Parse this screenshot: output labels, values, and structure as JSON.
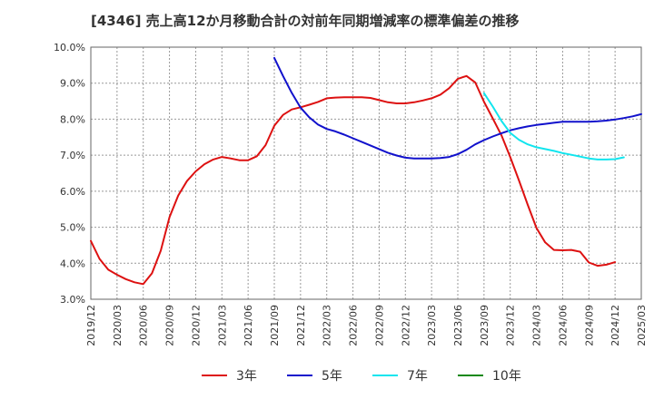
{
  "chart_data": {
    "type": "line",
    "title": "[4346]  売上高12か月移動合計の対前年同期増減率の標準偏差の推移",
    "xlabel": "",
    "ylabel": "",
    "ylim": [
      3.0,
      10.0
    ],
    "y_ticks": [
      "3.0%",
      "4.0%",
      "5.0%",
      "6.0%",
      "7.0%",
      "8.0%",
      "9.0%",
      "10.0%"
    ],
    "x_ticks": [
      "2019/12",
      "2020/03",
      "2020/06",
      "2020/09",
      "2020/12",
      "2021/03",
      "2021/06",
      "2021/09",
      "2021/12",
      "2022/03",
      "2022/06",
      "2022/09",
      "2022/12",
      "2023/03",
      "2023/06",
      "2023/09",
      "2023/12",
      "2024/03",
      "2024/06",
      "2024/09",
      "2024/12",
      "2025/03"
    ],
    "grid": true,
    "legend_position": "bottom",
    "series": [
      {
        "name": "3年",
        "color": "#dd1111",
        "start_month": 0,
        "values": [
          4.62,
          4.12,
          3.82,
          3.68,
          3.56,
          3.47,
          3.42,
          3.72,
          4.35,
          5.28,
          5.88,
          6.28,
          6.55,
          6.75,
          6.88,
          6.95,
          6.91,
          6.86,
          6.86,
          6.97,
          7.28,
          7.82,
          8.12,
          8.27,
          8.33,
          8.4,
          8.48,
          8.58,
          8.6,
          8.61,
          8.61,
          8.61,
          8.59,
          8.53,
          8.47,
          8.44,
          8.44,
          8.47,
          8.52,
          8.58,
          8.68,
          8.86,
          9.12,
          9.2,
          9.02,
          8.48,
          8.02,
          7.55,
          6.95,
          6.3,
          5.62,
          4.98,
          4.58,
          4.37,
          4.36,
          4.37,
          4.32,
          4.02,
          3.93,
          3.96,
          4.03
        ]
      },
      {
        "name": "5年",
        "color": "#1111cc",
        "start_month": 21,
        "values": [
          9.7,
          9.2,
          8.73,
          8.32,
          8.05,
          7.85,
          7.73,
          7.66,
          7.57,
          7.47,
          7.37,
          7.27,
          7.17,
          7.07,
          6.99,
          6.93,
          6.91,
          6.91,
          6.91,
          6.92,
          6.95,
          7.03,
          7.15,
          7.3,
          7.42,
          7.52,
          7.61,
          7.69,
          7.75,
          7.8,
          7.84,
          7.87,
          7.9,
          7.93,
          7.93,
          7.93,
          7.93,
          7.94,
          7.96,
          7.99,
          8.03,
          8.08,
          8.14
        ]
      },
      {
        "name": "7年",
        "color": "#11e5ee",
        "start_month": 45,
        "values": [
          8.72,
          8.35,
          7.95,
          7.62,
          7.43,
          7.3,
          7.22,
          7.17,
          7.12,
          7.06,
          7.01,
          6.96,
          6.91,
          6.88,
          6.88,
          6.89,
          6.94
        ]
      },
      {
        "name": "10年",
        "color": "#118811",
        "start_month": 0,
        "values": []
      }
    ]
  }
}
